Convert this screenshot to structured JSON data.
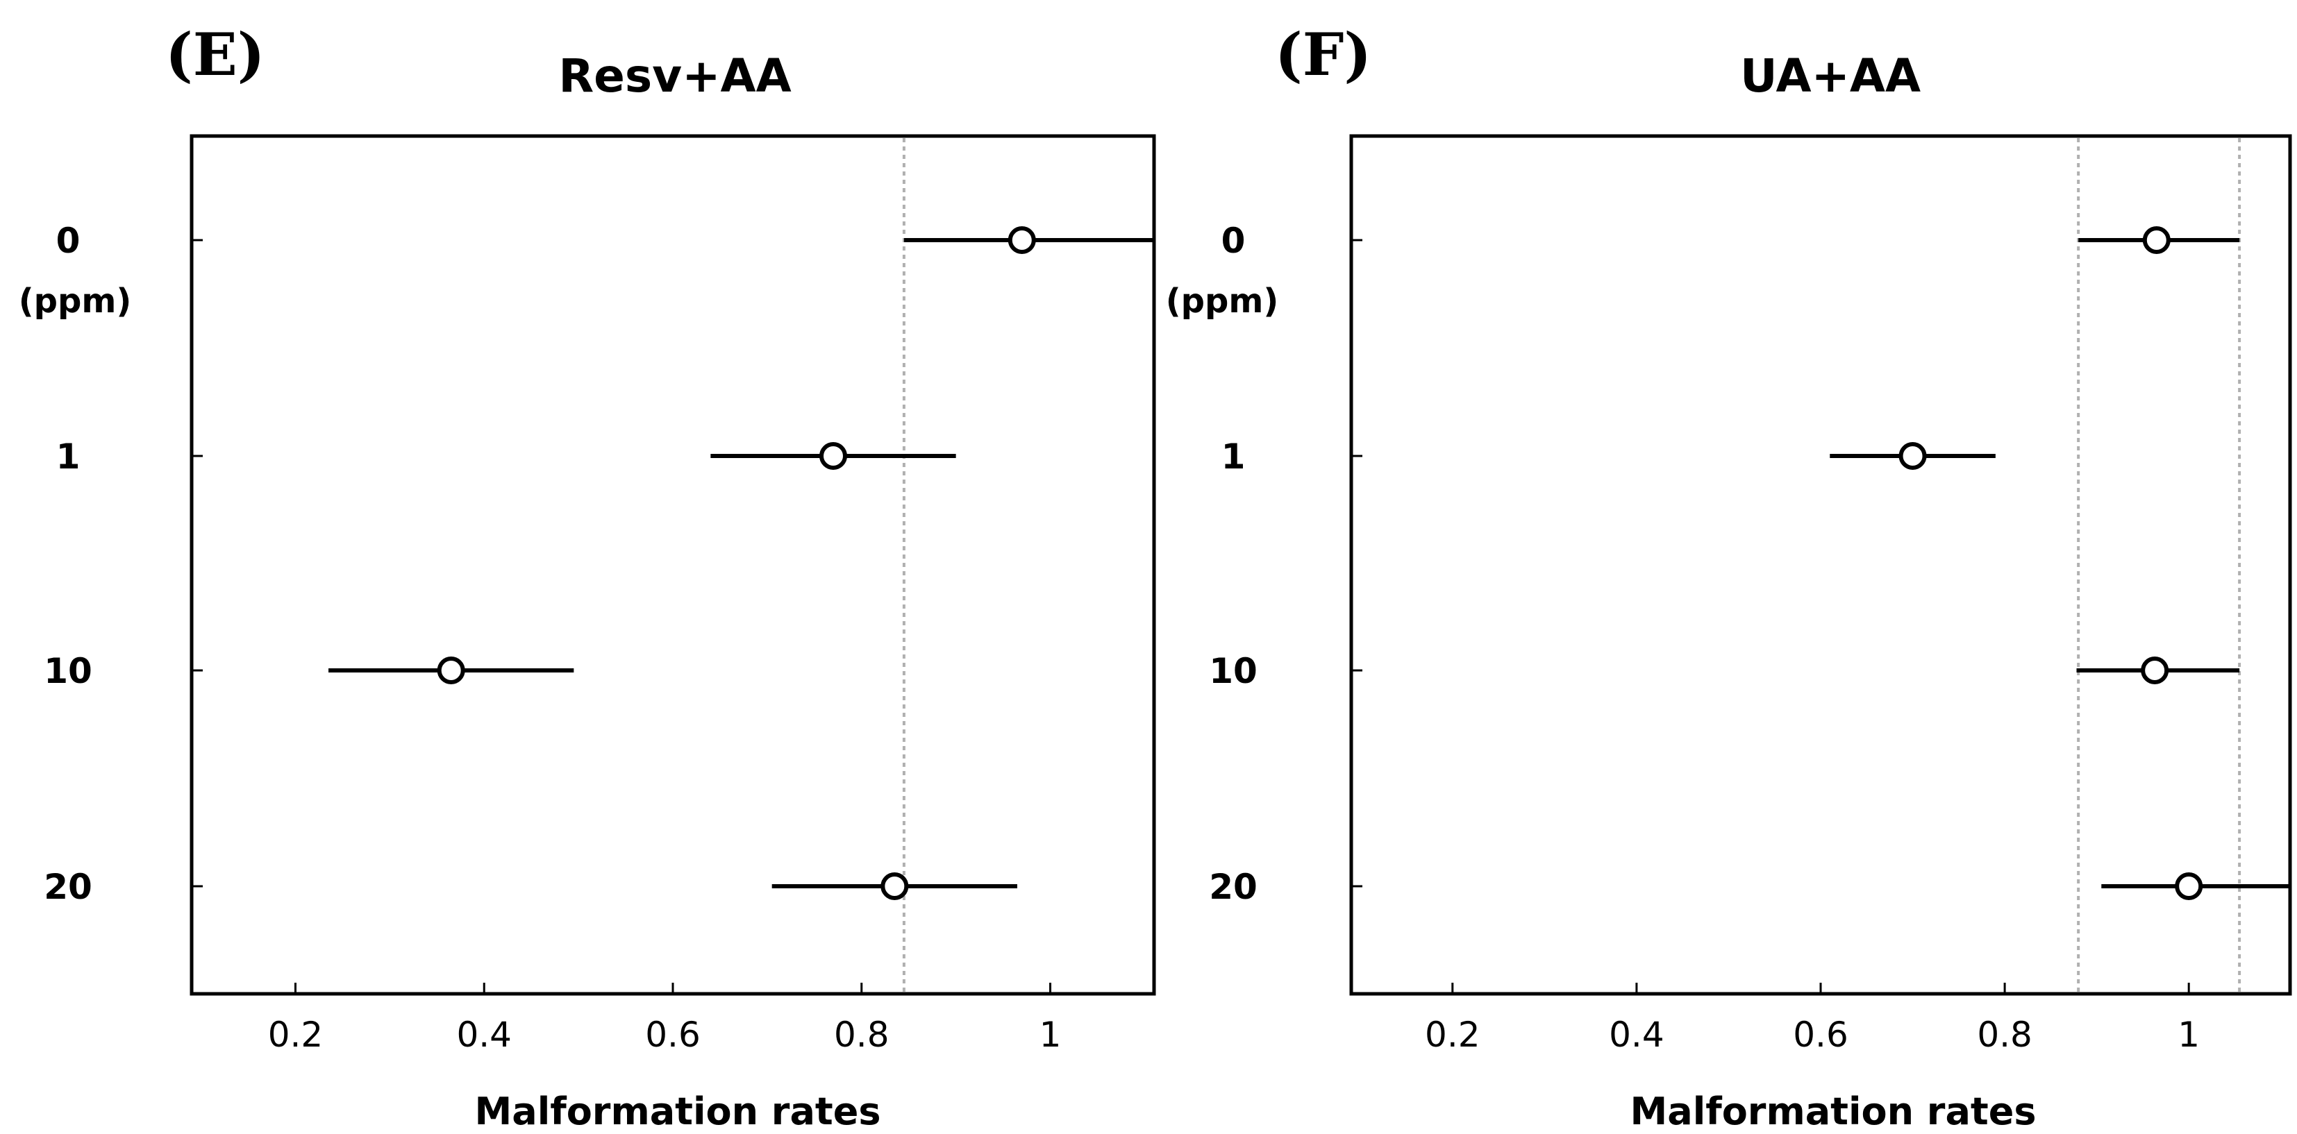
{
  "figure": {
    "colors": {
      "mark": "#000000",
      "reference_line": "#b0b0b0",
      "background": "#ffffff"
    }
  },
  "chart_data": [
    {
      "type": "scatter",
      "panel_label": "(E)",
      "title": "Resv+AA",
      "xlabel": "Malformation rates",
      "y_unit": "(ppm)",
      "categories": [
        "0",
        "1",
        "10",
        "20"
      ],
      "x_ticks": [
        "0.2",
        "0.4",
        "0.6",
        "0.8",
        "1"
      ],
      "x_tick_values": [
        0.2,
        0.4,
        0.6,
        0.8,
        1.0
      ],
      "xlim": [
        0.09,
        1.11
      ],
      "estimates": [
        0.97,
        0.77,
        0.365,
        0.835
      ],
      "ci_lower": [
        0.845,
        0.64,
        0.235,
        0.705
      ],
      "ci_upper": [
        1.11,
        0.9,
        0.495,
        0.965
      ],
      "reference_lines": [
        0.845
      ]
    },
    {
      "type": "scatter",
      "panel_label": "(F)",
      "title": "UA+AA",
      "xlabel": "Malformation rates",
      "y_unit": "(ppm)",
      "categories": [
        "0",
        "1",
        "10",
        "20"
      ],
      "x_ticks": [
        "0.2",
        "0.4",
        "0.6",
        "0.8",
        "1"
      ],
      "x_tick_values": [
        0.2,
        0.4,
        0.6,
        0.8,
        1.0
      ],
      "xlim": [
        0.09,
        1.11
      ],
      "estimates": [
        0.965,
        0.7,
        0.963,
        1.0
      ],
      "ci_lower": [
        0.88,
        0.61,
        0.878,
        0.905
      ],
      "ci_upper": [
        1.055,
        0.79,
        1.055,
        1.11
      ],
      "reference_lines": [
        0.88,
        1.055
      ]
    }
  ]
}
